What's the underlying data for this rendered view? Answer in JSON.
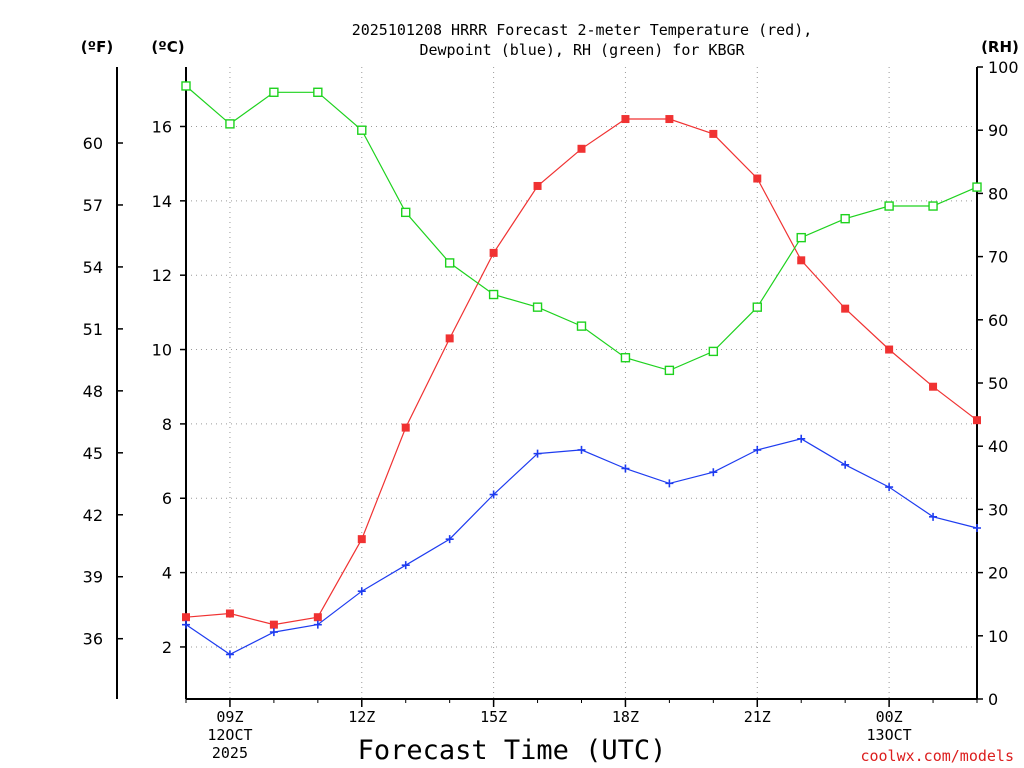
{
  "chart_data": {
    "type": "line",
    "title_line1": "2025101208 HRRR Forecast 2-meter Temperature (red),",
    "title_line2": "Dewpoint (blue), RH (green) for KBGR",
    "xlabel": "Forecast Time (UTC)",
    "credit": "coolwx.com/models",
    "units": {
      "fahrenheit": "(ºF)",
      "celsius": "(ºC)",
      "rh": "(RH)"
    },
    "x_hours": [
      8,
      9,
      10,
      11,
      12,
      13,
      14,
      15,
      16,
      17,
      18,
      19,
      20,
      21,
      22,
      23,
      24,
      25,
      26
    ],
    "xlim": [
      8,
      26
    ],
    "x_ticks": [
      {
        "hour": 9,
        "lines": [
          "09Z",
          "12OCT",
          "2025"
        ]
      },
      {
        "hour": 12,
        "lines": [
          "12Z"
        ]
      },
      {
        "hour": 15,
        "lines": [
          "15Z"
        ]
      },
      {
        "hour": 18,
        "lines": [
          "18Z"
        ]
      },
      {
        "hour": 21,
        "lines": [
          "21Z"
        ]
      },
      {
        "hour": 24,
        "lines": [
          "00Z",
          "13OCT"
        ]
      }
    ],
    "y_celsius": {
      "lim": [
        0.6,
        17.6
      ],
      "ticks": [
        2,
        4,
        6,
        8,
        10,
        12,
        14,
        16
      ]
    },
    "y_fahrenheit": {
      "ticks": [
        36,
        39,
        42,
        45,
        48,
        51,
        54,
        57,
        60
      ]
    },
    "y_rh": {
      "lim": [
        0,
        100
      ],
      "ticks": [
        0,
        10,
        20,
        30,
        40,
        50,
        60,
        70,
        80,
        90,
        100
      ]
    },
    "series": [
      {
        "name": "Temperature",
        "axis": "celsius",
        "color": "#f03232",
        "marker": "filled-square",
        "values": [
          2.8,
          2.9,
          2.6,
          2.8,
          4.9,
          7.9,
          10.3,
          12.6,
          14.4,
          15.4,
          16.2,
          16.2,
          15.8,
          14.6,
          12.4,
          11.1,
          10.0,
          9.0,
          8.1
        ]
      },
      {
        "name": "Dewpoint",
        "axis": "celsius",
        "color": "#1e3cf0",
        "marker": "plus",
        "values": [
          2.6,
          1.8,
          2.4,
          2.6,
          3.5,
          4.2,
          4.9,
          6.1,
          7.2,
          7.3,
          6.8,
          6.4,
          6.7,
          7.3,
          7.6,
          6.9,
          6.3,
          5.5,
          5.2
        ]
      },
      {
        "name": "RH",
        "axis": "rh",
        "color": "#1ed21e",
        "marker": "open-square",
        "values": [
          97,
          91,
          96,
          96,
          90,
          77,
          69,
          64,
          62,
          59,
          54,
          52,
          55,
          62,
          73,
          76,
          78,
          78,
          81
        ]
      }
    ]
  }
}
